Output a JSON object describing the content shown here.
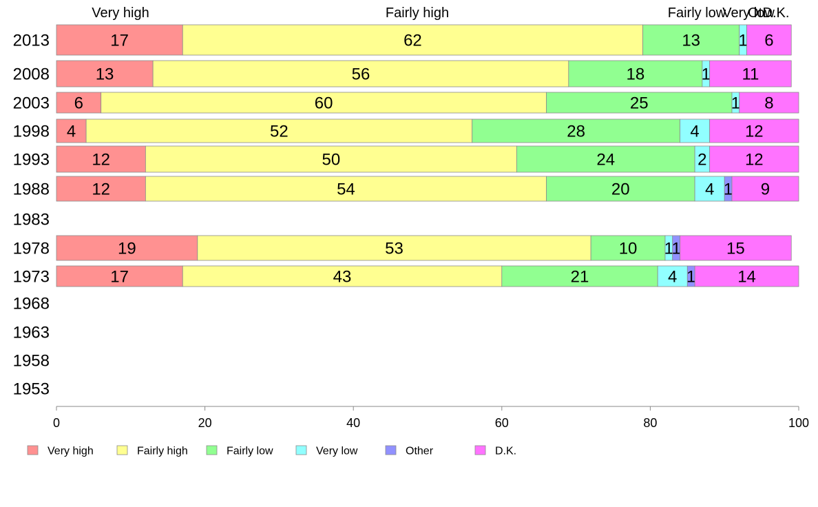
{
  "chart_data": {
    "type": "bar",
    "orientation": "horizontal",
    "stacked": true,
    "categories": [
      "2013",
      "2008",
      "2003",
      "1998",
      "1993",
      "1988",
      "1983",
      "1978",
      "1973",
      "1968",
      "1963",
      "1958",
      "1953"
    ],
    "series": [
      {
        "name": "Very high",
        "color": "#ff9191",
        "values": [
          17,
          13,
          6,
          4,
          12,
          12,
          null,
          19,
          17,
          null,
          null,
          null,
          null
        ]
      },
      {
        "name": "Fairly high",
        "color": "#ffff91",
        "values": [
          62,
          56,
          60,
          52,
          50,
          54,
          null,
          53,
          43,
          null,
          null,
          null,
          null
        ]
      },
      {
        "name": "Fairly low",
        "color": "#91ff91",
        "values": [
          13,
          18,
          25,
          28,
          24,
          20,
          null,
          10,
          21,
          null,
          null,
          null,
          null
        ]
      },
      {
        "name": "Very low",
        "color": "#91ffff",
        "values": [
          1,
          1,
          1,
          4,
          2,
          4,
          null,
          1,
          4,
          null,
          null,
          null,
          null
        ]
      },
      {
        "name": "Other",
        "color": "#9191ff",
        "values": [
          0,
          0,
          0,
          0,
          0,
          1,
          null,
          1,
          1,
          null,
          null,
          null,
          null
        ]
      },
      {
        "name": "D.K.",
        "color": "#ff73ff",
        "values": [
          6,
          11,
          8,
          12,
          12,
          9,
          null,
          15,
          14,
          null,
          null,
          null,
          null
        ]
      }
    ],
    "column_headers": [
      "Very high",
      "Fairly high",
      "Fairly low",
      "Very low",
      "Ot...",
      "D.K."
    ],
    "xlim": [
      0,
      100
    ],
    "xticks": [
      0,
      20,
      40,
      60,
      80,
      100
    ],
    "grid": false,
    "legend_position": "bottom"
  }
}
